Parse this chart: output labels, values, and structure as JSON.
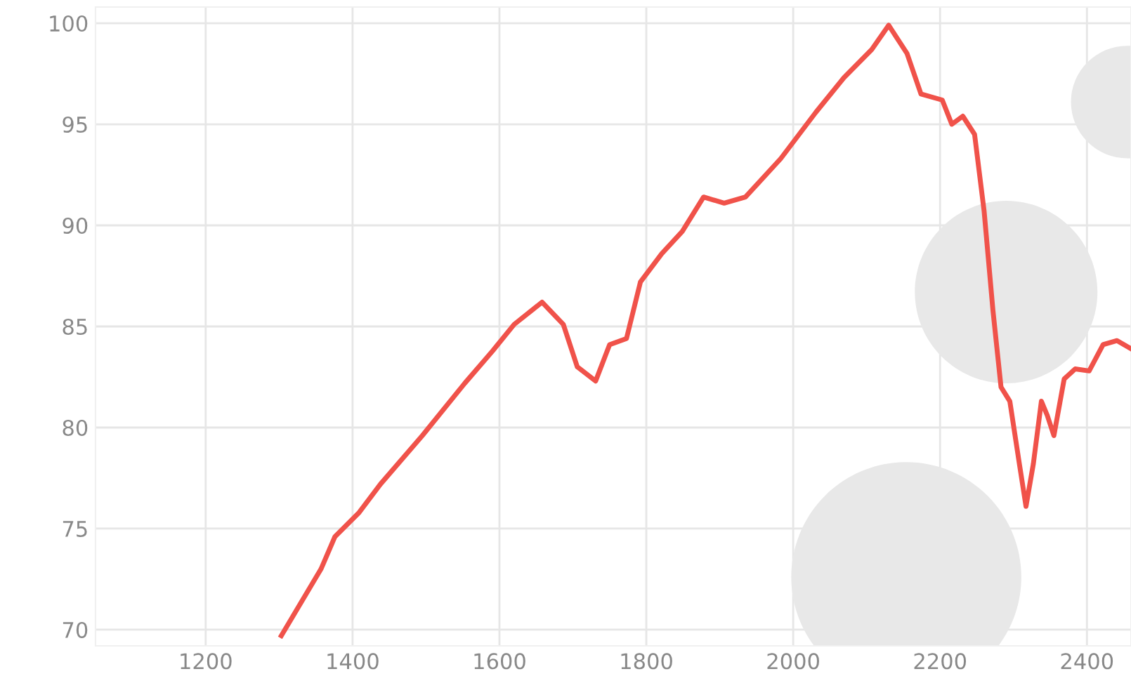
{
  "chart_data": {
    "type": "line",
    "xlim": [
      1050,
      2460
    ],
    "ylim": [
      69.2,
      100.8
    ],
    "xticks": [
      1200,
      1400,
      1600,
      1800,
      2000,
      2200,
      2400
    ],
    "yticks": [
      70,
      75,
      80,
      85,
      90,
      95,
      100
    ],
    "grid": true,
    "line_style": "solid",
    "series": [
      {
        "type": "bubble",
        "color": "#e8e8e8",
        "x": [
          2154,
          2290,
          2455
        ],
        "values": [
          72.6,
          86.7,
          96.1
        ],
        "sizes": [
          1,
          0.63,
          0.24
        ]
      },
      {
        "color": "#f0524a",
        "x": [
          1303,
          1357,
          1376,
          1409,
          1438,
          1495,
          1553,
          1591,
          1620,
          1658,
          1687,
          1706,
          1731,
          1750,
          1773,
          1792,
          1821,
          1849,
          1878,
          1906,
          1935,
          1983,
          2031,
          2069,
          2107,
          2130,
          2155,
          2174,
          2203,
          2216,
          2231,
          2247,
          2260,
          2272,
          2283,
          2295,
          2308,
          2317,
          2327,
          2338,
          2346,
          2355,
          2369,
          2384,
          2403,
          2422,
          2441,
          2460
        ],
        "values": [
          69.7,
          73.0,
          74.6,
          75.8,
          77.2,
          79.6,
          82.2,
          83.8,
          85.1,
          86.2,
          85.1,
          83.0,
          82.3,
          84.1,
          84.4,
          87.2,
          88.6,
          89.7,
          91.4,
          91.1,
          91.4,
          93.3,
          95.6,
          97.3,
          98.7,
          99.9,
          98.5,
          96.5,
          96.2,
          95.0,
          95.4,
          94.5,
          90.7,
          85.8,
          82.0,
          81.3,
          78.2,
          76.1,
          78.2,
          81.3,
          80.6,
          79.6,
          82.4,
          82.9,
          82.8,
          84.1,
          84.3,
          83.9
        ]
      }
    ]
  }
}
